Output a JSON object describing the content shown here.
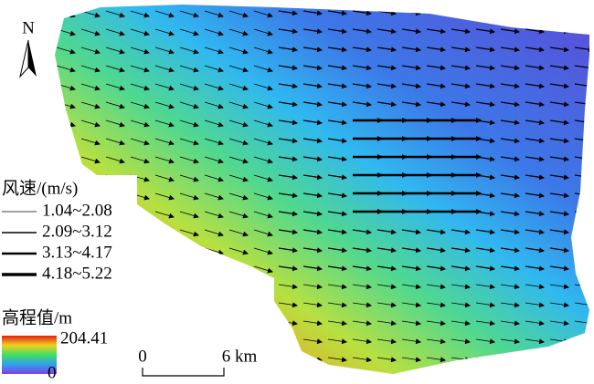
{
  "north": "N",
  "wind_legend": {
    "title": "风速/(m/s)",
    "entries": [
      "1.04~2.08",
      "2.09~3.12",
      "3.13~4.17",
      "4.18~5.22"
    ]
  },
  "elevation_legend": {
    "title": "高程值/m",
    "max": "204.41",
    "min": "0"
  },
  "scale_bar": {
    "start": "0",
    "end": "6 km"
  }
}
